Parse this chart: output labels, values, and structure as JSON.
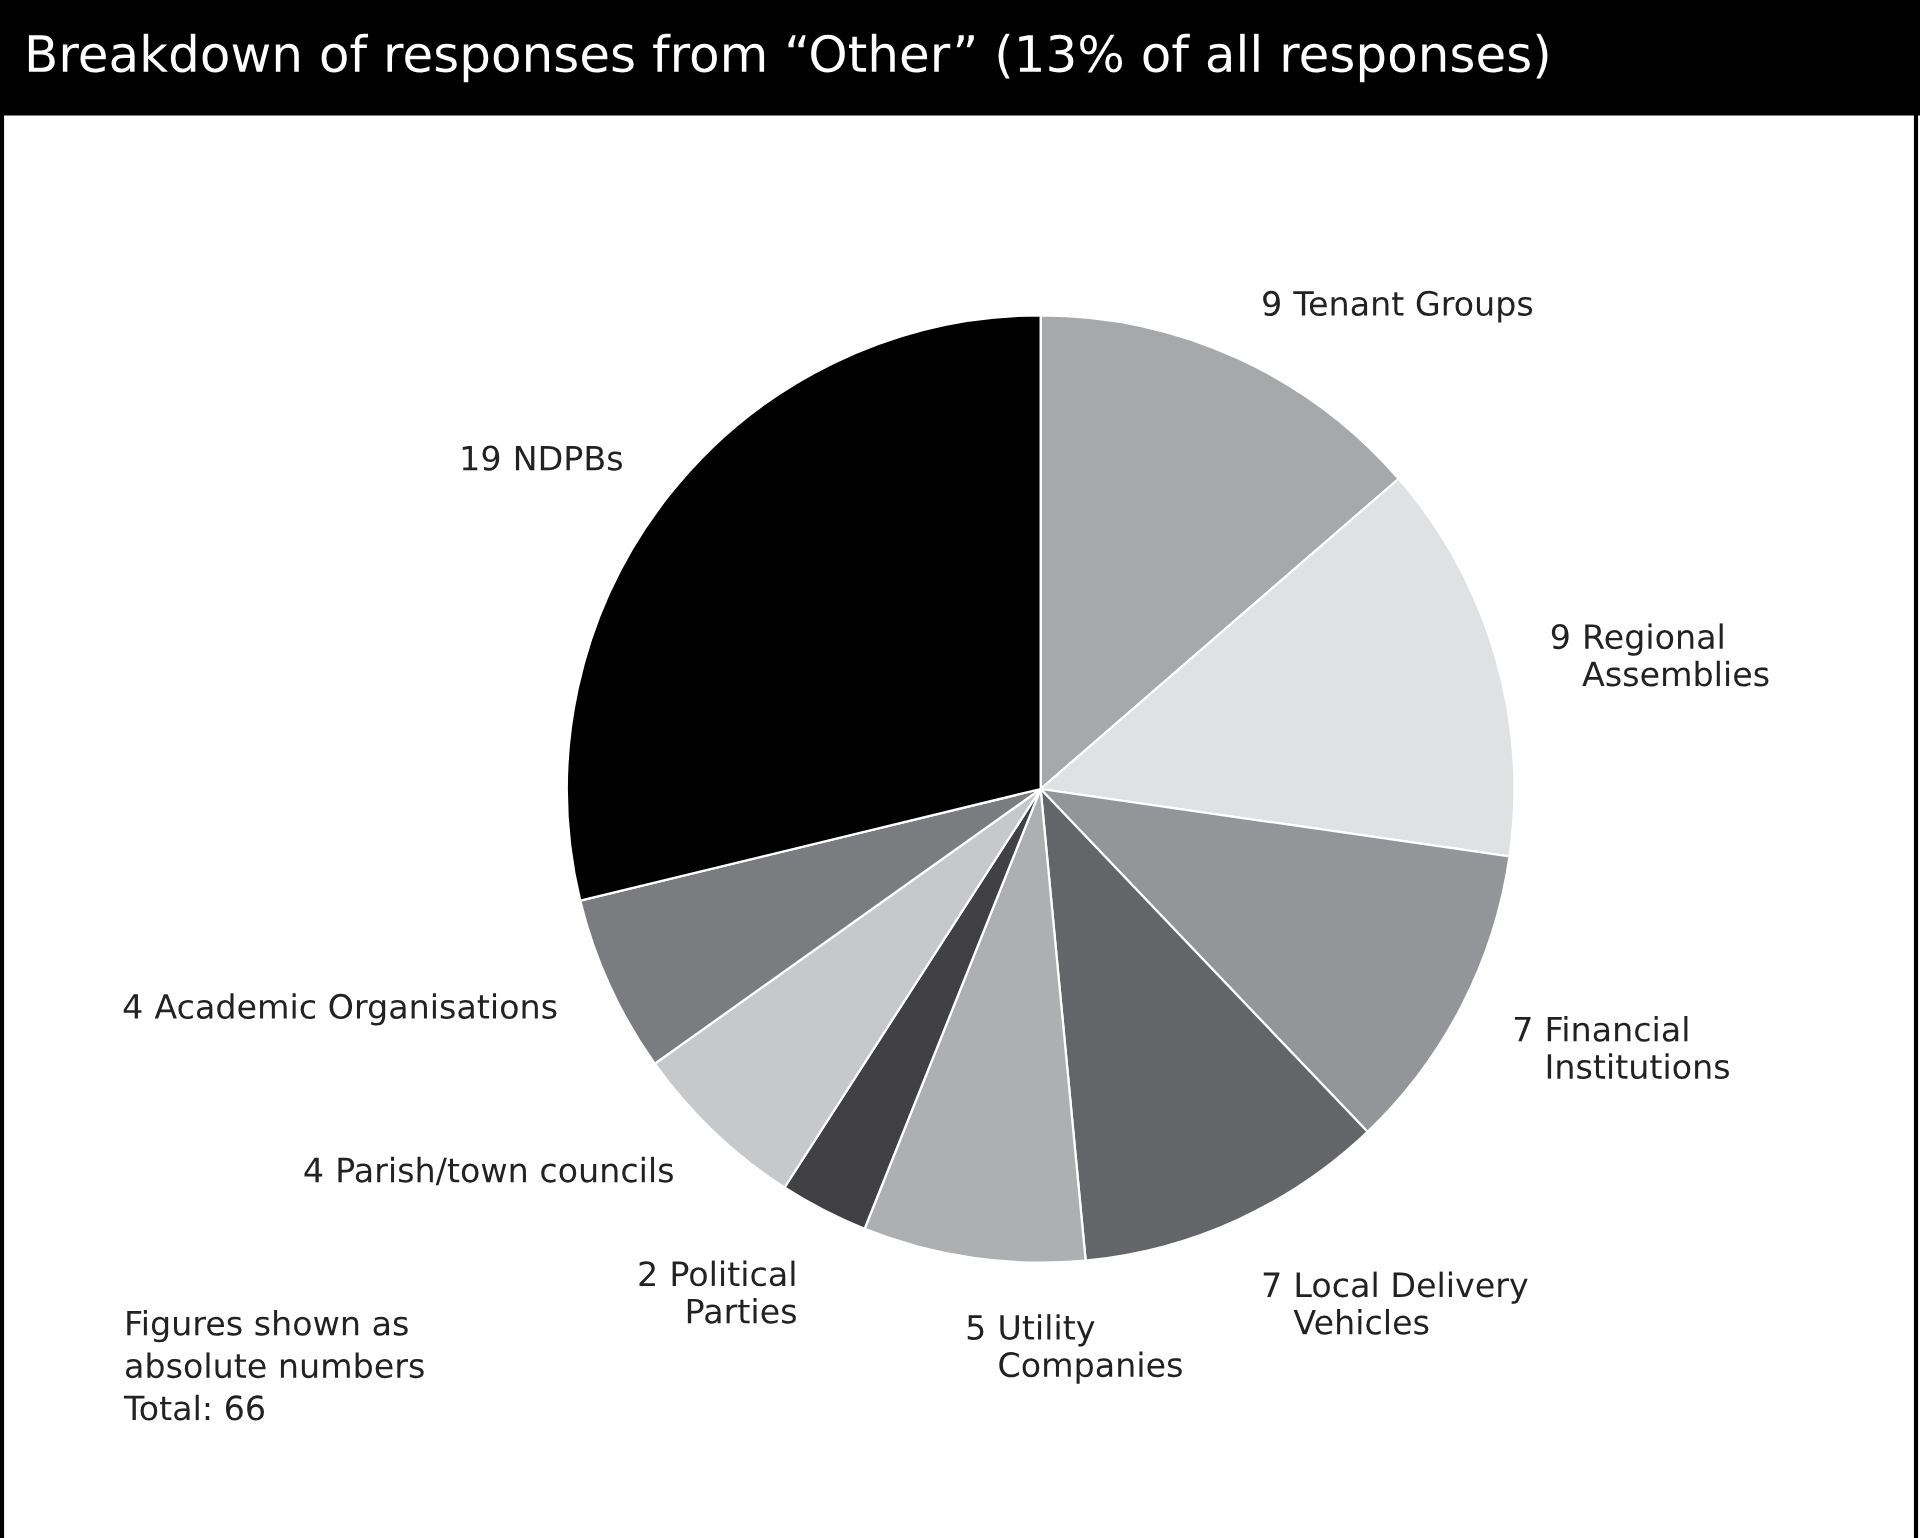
{
  "chart_data": {
    "type": "pie",
    "title": "Breakdown of responses from “Other” (13% of all responses)",
    "categories": [
      "Tenant Groups",
      "Regional\nAssemblies",
      "Financial\nInstitutions",
      "Local Delivery\nVehicles",
      "Utility\nCompanies",
      "Political\nParties",
      "Parish/town councils",
      "Academic Organisations",
      "NDPBs"
    ],
    "values": [
      9,
      9,
      7,
      7,
      5,
      2,
      4,
      4,
      19
    ],
    "colors": [
      "#a7a8aa",
      "#e0e1e2",
      "#939598",
      "#646569",
      "#aeafb1",
      "#414042",
      "#c7c8ca",
      "#7b7c7f",
      "#000000"
    ],
    "data_labels": true,
    "legend": false,
    "annotations": [
      "Figures shown as\nabsolute numbers\nTotal: 66"
    ]
  }
}
